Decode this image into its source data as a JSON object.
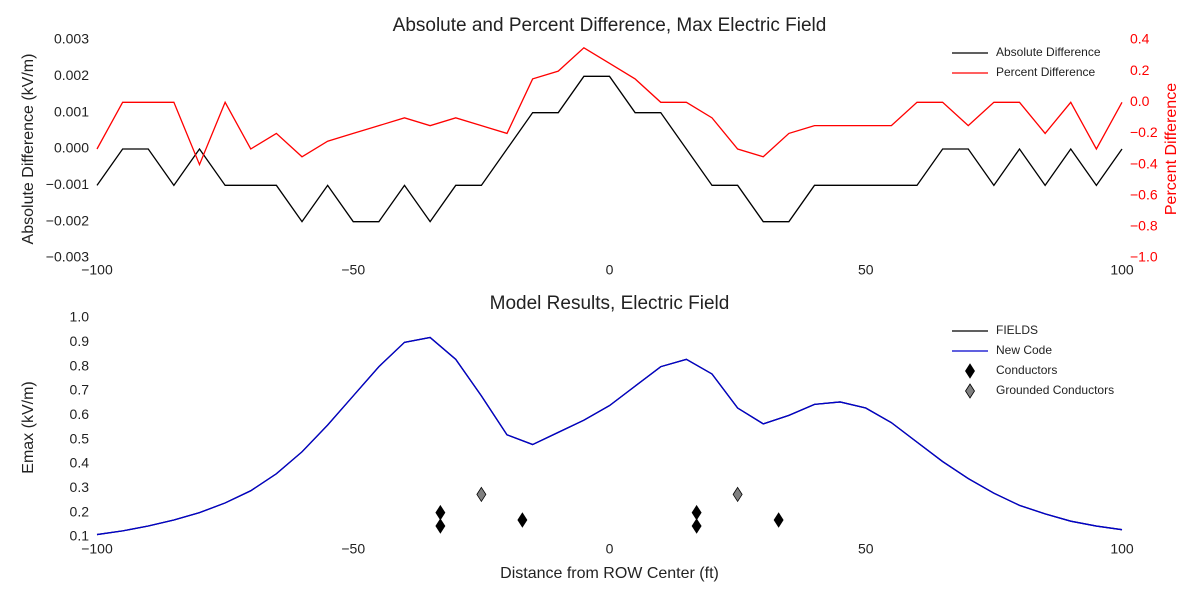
{
  "chart_data": [
    {
      "type": "line",
      "title": "Absolute and Percent Difference, Max Electric Field",
      "ylabel": "Absolute Difference (kV/m)",
      "y2label": "Percent Difference",
      "x": [
        -100,
        -95,
        -90,
        -85,
        -80,
        -75,
        -70,
        -65,
        -60,
        -55,
        -50,
        -45,
        -40,
        -35,
        -30,
        -25,
        -20,
        -15,
        -10,
        -5,
        0,
        5,
        10,
        15,
        20,
        25,
        30,
        35,
        40,
        45,
        50,
        55,
        60,
        65,
        70,
        75,
        80,
        85,
        90,
        95,
        100
      ],
      "series": [
        {
          "name": "Absolute Difference",
          "color": "#000000",
          "axis": "y",
          "values": [
            -0.001,
            0,
            0,
            -0.001,
            0,
            -0.001,
            -0.001,
            -0.001,
            -0.002,
            -0.001,
            -0.002,
            -0.002,
            -0.001,
            -0.002,
            -0.001,
            -0.001,
            0,
            0.001,
            0.001,
            0.002,
            0.002,
            0.001,
            0.001,
            0,
            -0.001,
            -0.001,
            -0.002,
            -0.002,
            -0.001,
            -0.001,
            -0.001,
            -0.001,
            -0.001,
            0,
            0,
            -0.001,
            0,
            -0.001,
            0,
            -0.001,
            0
          ]
        },
        {
          "name": "Percent Difference",
          "color": "#ff0000",
          "axis": "y2",
          "values": [
            -0.3,
            0,
            0,
            0,
            -0.4,
            0,
            -0.3,
            -0.2,
            -0.35,
            -0.25,
            -0.2,
            -0.15,
            -0.1,
            -0.15,
            -0.1,
            -0.15,
            -0.2,
            0.15,
            0.2,
            0.35,
            0.25,
            0.15,
            0,
            0,
            -0.1,
            -0.3,
            -0.35,
            -0.2,
            -0.15,
            -0.15,
            -0.15,
            -0.15,
            0,
            0,
            -0.15,
            0,
            0,
            -0.2,
            0,
            -0.3,
            0
          ]
        }
      ],
      "xlim": [
        -100,
        100
      ],
      "xticks": [
        {
          "value": -100,
          "label": "−100"
        },
        {
          "value": -50,
          "label": "−50"
        },
        0,
        50,
        100
      ],
      "ylim": [
        -0.003,
        0.003
      ],
      "yticks": [
        {
          "value": -0.003,
          "label": "−0.003"
        },
        {
          "value": -0.002,
          "label": "−0.002"
        },
        {
          "value": -0.001,
          "label": "−0.001"
        },
        {
          "value": 0,
          "label": "0.000"
        },
        {
          "value": 0.001,
          "label": "0.001"
        },
        {
          "value": 0.002,
          "label": "0.002"
        },
        {
          "value": 0.003,
          "label": "0.003"
        }
      ],
      "y2lim": [
        -1.0,
        0.4
      ],
      "y2ticks": [
        {
          "value": -1.0,
          "label": "−1.0"
        },
        {
          "value": -0.8,
          "label": "−0.8"
        },
        {
          "value": -0.6,
          "label": "−0.6"
        },
        {
          "value": -0.4,
          "label": "−0.4"
        },
        {
          "value": -0.2,
          "label": "−0.2"
        },
        {
          "value": 0,
          "label": "0.0"
        },
        0.2,
        0.4
      ],
      "legend": "upper right"
    },
    {
      "type": "line",
      "title": "Model Results, Electric Field",
      "xlabel": "Distance from ROW Center (ft)",
      "ylabel": "Emax (kV/m)",
      "x": [
        -100,
        -95,
        -90,
        -85,
        -80,
        -75,
        -70,
        -65,
        -60,
        -55,
        -50,
        -45,
        -40,
        -35,
        -30,
        -25,
        -20,
        -15,
        -10,
        -5,
        0,
        5,
        10,
        15,
        20,
        25,
        30,
        35,
        40,
        45,
        50,
        55,
        60,
        65,
        70,
        75,
        80,
        85,
        90,
        95,
        100
      ],
      "series": [
        {
          "name": "FIELDS",
          "color": "#000000",
          "marker": "line",
          "values": [
            0.11,
            0.125,
            0.145,
            0.17,
            0.2,
            0.24,
            0.29,
            0.36,
            0.45,
            0.56,
            0.68,
            0.8,
            0.9,
            0.92,
            0.83,
            0.68,
            0.52,
            0.48,
            0.53,
            0.58,
            0.64,
            0.72,
            0.8,
            0.83,
            0.77,
            0.63,
            0.565,
            0.6,
            0.645,
            0.655,
            0.63,
            0.57,
            0.49,
            0.41,
            0.34,
            0.28,
            0.23,
            0.195,
            0.165,
            0.145,
            0.13
          ]
        },
        {
          "name": "New Code",
          "color": "#0000cc",
          "marker": "line",
          "values": [
            0.11,
            0.125,
            0.145,
            0.17,
            0.2,
            0.24,
            0.29,
            0.36,
            0.45,
            0.56,
            0.68,
            0.8,
            0.9,
            0.92,
            0.83,
            0.68,
            0.52,
            0.48,
            0.53,
            0.58,
            0.64,
            0.72,
            0.8,
            0.83,
            0.77,
            0.63,
            0.565,
            0.6,
            0.645,
            0.655,
            0.63,
            0.57,
            0.49,
            0.41,
            0.34,
            0.28,
            0.23,
            0.195,
            0.165,
            0.145,
            0.13
          ]
        },
        {
          "name": "Conductors",
          "color": "#000000",
          "marker": "diamond",
          "x": [
            -33,
            -33,
            -17,
            17,
            17,
            33
          ],
          "values": [
            0.2,
            0.145,
            0.17,
            0.2,
            0.145,
            0.17
          ]
        },
        {
          "name": "Grounded Conductors",
          "color": "#808080",
          "marker": "diamond",
          "x": [
            -25,
            25
          ],
          "values": [
            0.275,
            0.275
          ]
        }
      ],
      "xlim": [
        -100,
        100
      ],
      "xticks": [
        {
          "value": -100,
          "label": "−100"
        },
        {
          "value": -50,
          "label": "−50"
        },
        0,
        50,
        100
      ],
      "ylim": [
        0.1,
        1.0
      ],
      "yticks": [
        0.1,
        0.2,
        0.3,
        0.4,
        0.5,
        0.6,
        0.7,
        0.8,
        0.9,
        {
          "value": 1.0,
          "label": "1.0"
        }
      ],
      "legend": "upper right"
    }
  ]
}
